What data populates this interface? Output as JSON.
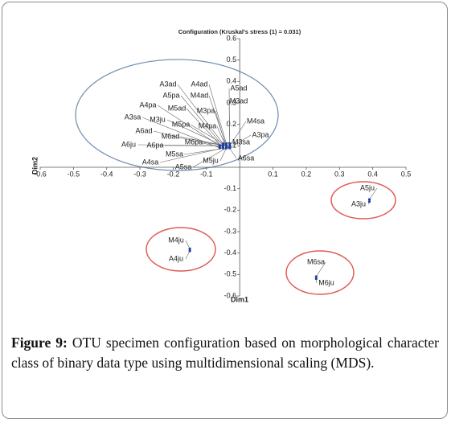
{
  "chart_data": {
    "type": "scatter",
    "title": "Configuration (Kruskal's stress (1) = 0.031)",
    "x_label": "Dim1",
    "y_label": "Dim2",
    "labels": [
      "A3ad",
      "A4ad",
      "A5ad",
      "A5pa",
      "M4ad",
      "M3ad",
      "A4pa",
      "M5ad",
      "M3pa",
      "A3sa",
      "M3ju",
      "M5pa",
      "M4pa",
      "M4sa",
      "A6ad",
      "M6ad",
      "A3pa",
      "A6ju",
      "A6pa",
      "M6pa",
      "M3sa",
      "M5sa",
      "A6sa",
      "M5ju",
      "A4sa",
      "A5sa",
      "A5ju",
      "A3ju",
      "M4ju",
      "A4ju",
      "M6sa",
      "M6ju"
    ],
    "x": [
      -0.05,
      -0.04,
      -0.03,
      -0.05,
      -0.04,
      -0.03,
      -0.06,
      -0.05,
      -0.04,
      -0.06,
      -0.05,
      -0.04,
      -0.04,
      -0.03,
      -0.05,
      -0.04,
      -0.03,
      -0.06,
      -0.05,
      -0.04,
      -0.03,
      -0.04,
      -0.03,
      -0.04,
      -0.05,
      -0.04,
      0.39,
      0.39,
      -0.15,
      -0.15,
      0.23,
      0.23
    ],
    "values": [
      0.11,
      0.11,
      0.11,
      0.1,
      0.1,
      0.1,
      0.1,
      0.09,
      0.09,
      0.09,
      0.1,
      0.1,
      0.09,
      0.1,
      0.09,
      0.1,
      0.09,
      0.1,
      0.1,
      0.1,
      0.1,
      0.09,
      0.09,
      0.09,
      0.09,
      0.09,
      -0.15,
      -0.16,
      -0.38,
      -0.39,
      -0.51,
      -0.52
    ],
    "color": "#1f3fa0",
    "xlim": [
      -0.6,
      0.5
    ],
    "xticks": [
      -0.6,
      -0.5,
      -0.4,
      -0.3,
      -0.2,
      -0.1,
      0.1,
      0.2,
      0.3,
      0.4,
      0.5
    ],
    "ylim": [
      -0.6,
      0.6
    ],
    "yticks": [
      -0.6,
      -0.5,
      -0.4,
      -0.3,
      -0.2,
      -0.1,
      0.1,
      0.2,
      0.3,
      0.4,
      0.5,
      0.6
    ]
  },
  "caption": {
    "label": "Figure 9:",
    "text": "OTU specimen configuration based on morphological character class of binary data type using multidimensional scaling (MDS)."
  }
}
